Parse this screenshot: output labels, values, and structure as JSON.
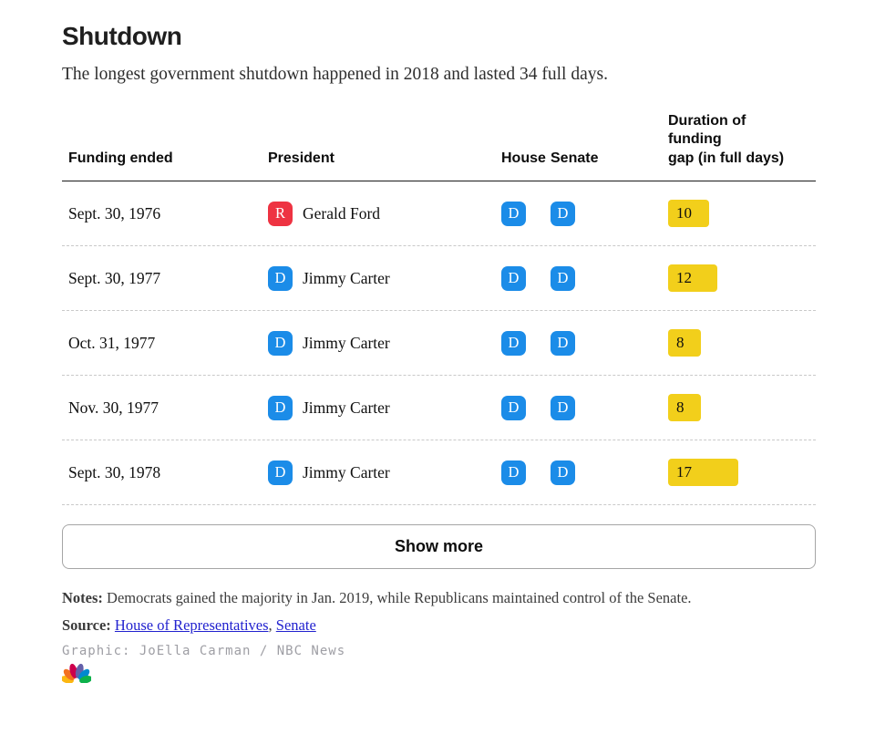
{
  "chart_data": {
    "type": "table",
    "title": "Shutdown",
    "subtitle": "The longest government shutdown happened in 2018 and lasted 34 full days.",
    "columns": {
      "funding_ended": "Funding ended",
      "president": "President",
      "house": "House",
      "senate": "Senate",
      "duration": "Duration of\nfunding\ngap (in full days)"
    },
    "rows": [
      {
        "funding_ended": "Sept. 30, 1976",
        "president_party": "R",
        "president": "Gerald Ford",
        "house_party": "D",
        "senate_party": "D",
        "duration_days": 10
      },
      {
        "funding_ended": "Sept. 30, 1977",
        "president_party": "D",
        "president": "Jimmy Carter",
        "house_party": "D",
        "senate_party": "D",
        "duration_days": 12
      },
      {
        "funding_ended": "Oct. 31, 1977",
        "president_party": "D",
        "president": "Jimmy Carter",
        "house_party": "D",
        "senate_party": "D",
        "duration_days": 8
      },
      {
        "funding_ended": "Nov. 30, 1977",
        "president_party": "D",
        "president": "Jimmy Carter",
        "house_party": "D",
        "senate_party": "D",
        "duration_days": 8
      },
      {
        "funding_ended": "Sept. 30, 1978",
        "president_party": "D",
        "president": "Jimmy Carter",
        "house_party": "D",
        "senate_party": "D",
        "duration_days": 17
      }
    ],
    "party_colors": {
      "D": "#1b8ce8",
      "R": "#ee3342"
    },
    "bar_color": "#f2cf1b"
  },
  "show_more": {
    "label": "Show more"
  },
  "footer": {
    "notes_label": "Notes:",
    "notes_text": " Democrats gained the majority in Jan. 2019, while Republicans maintained control of the Senate.",
    "source_label": "Source:",
    "source_links": [
      "House of Representatives",
      "Senate"
    ],
    "source_separator": ", ",
    "credit": "Graphic: JoElla Carman / NBC News",
    "logo": "nbc-peacock-logo"
  }
}
